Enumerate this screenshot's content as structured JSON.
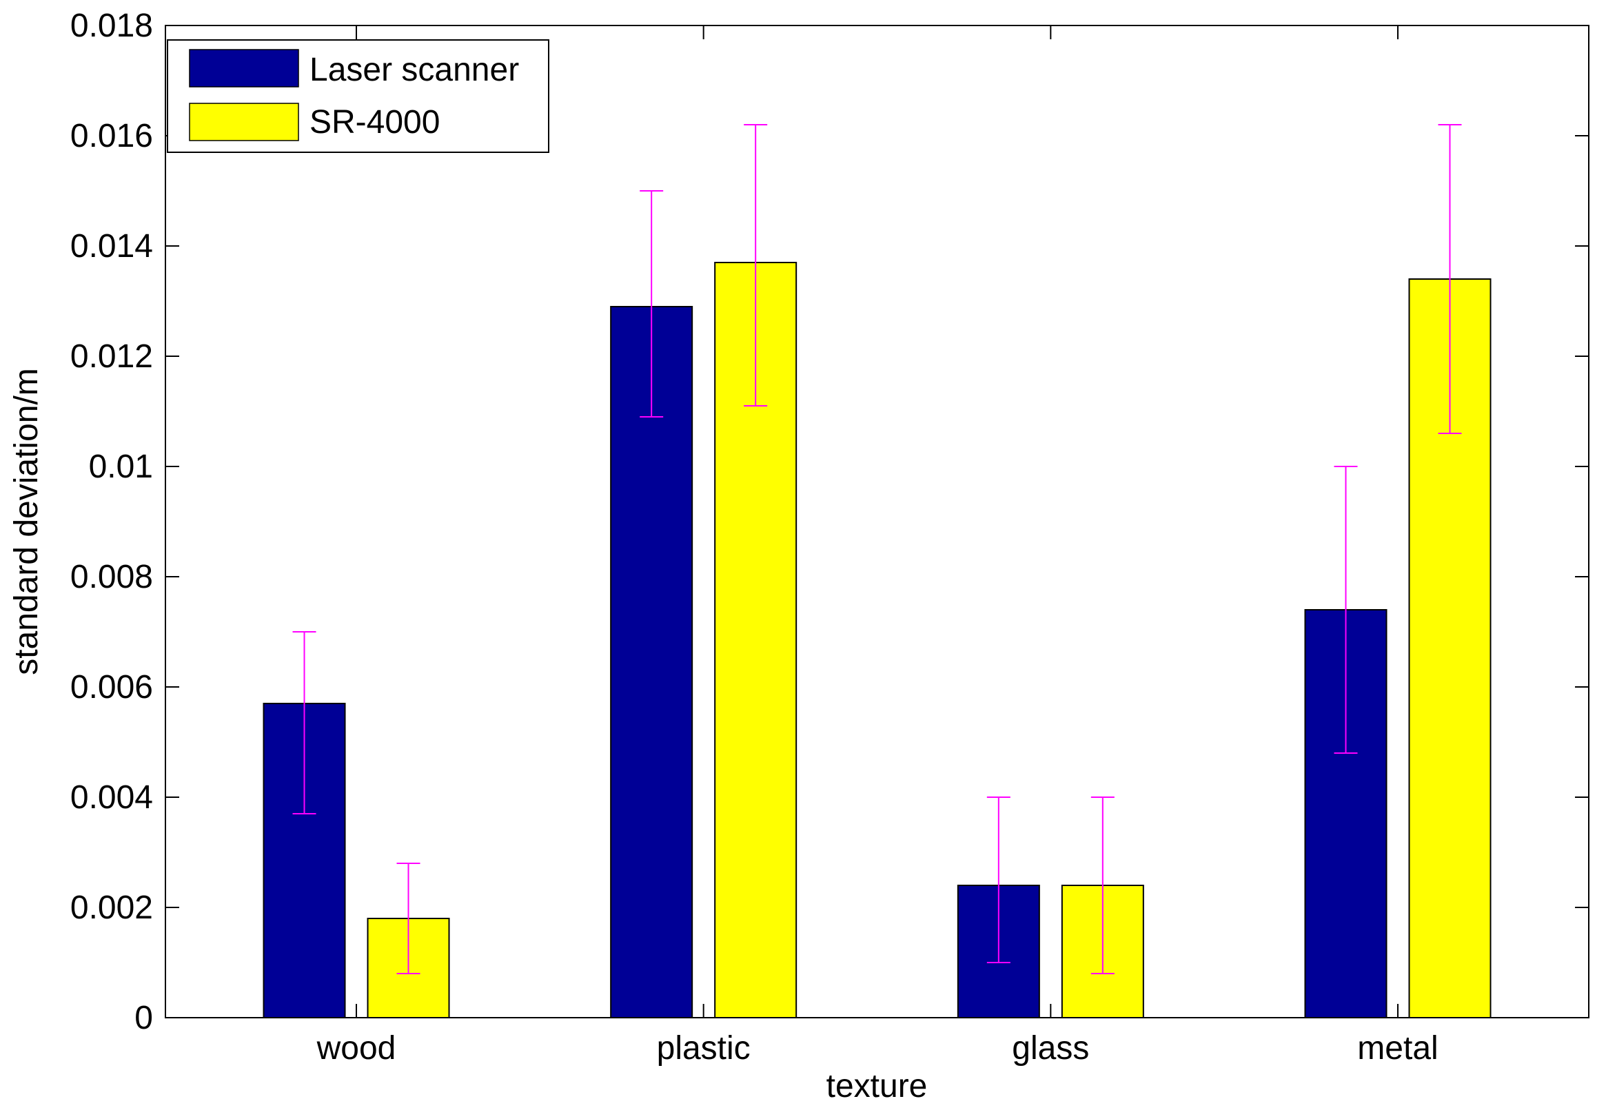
{
  "chart_data": {
    "type": "bar",
    "title": "",
    "xlabel": "texture",
    "ylabel": "standard deviation/m",
    "categories": [
      "wood",
      "plastic",
      "glass",
      "metal"
    ],
    "ylim": [
      0,
      0.018
    ],
    "yticks": [
      "0",
      "0.002",
      "0.004",
      "0.006",
      "0.008",
      "0.01",
      "0.012",
      "0.014",
      "0.016",
      "0.018"
    ],
    "grid": false,
    "legend_position": "top-left",
    "series": [
      {
        "name": "Laser scanner",
        "color": "#000096",
        "values": [
          0.0057,
          0.0129,
          0.0024,
          0.0074
        ],
        "error_low": [
          0.0037,
          0.0109,
          0.001,
          0.0048
        ],
        "error_high": [
          0.007,
          0.015,
          0.004,
          0.01
        ]
      },
      {
        "name": "SR-4000",
        "color": "#FFFF00",
        "values": [
          0.0018,
          0.0137,
          0.0024,
          0.0134
        ],
        "error_low": [
          0.0008,
          0.0111,
          0.0008,
          0.0106
        ],
        "error_high": [
          0.0028,
          0.0162,
          0.004,
          0.0162
        ]
      }
    ],
    "error_bar_color": "#FF00FF"
  }
}
